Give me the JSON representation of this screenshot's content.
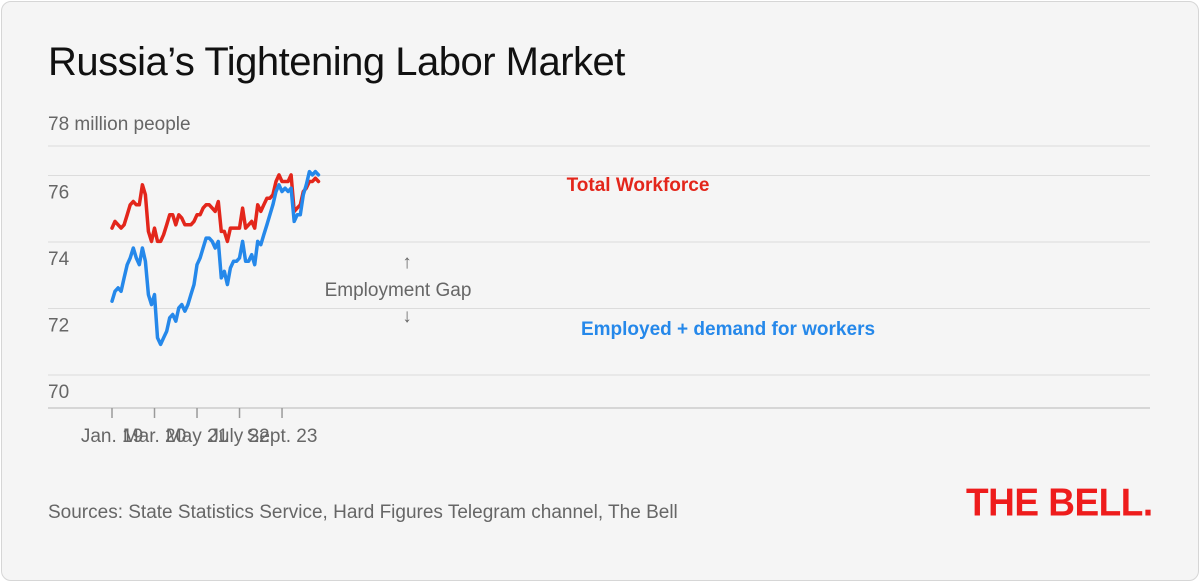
{
  "chart_data": {
    "type": "line",
    "title": "Russia’s Tightening Labor Market",
    "ylabel": "78 million people",
    "ylim": [
      69.5,
      78
    ],
    "yticks": [
      70,
      72,
      74,
      76
    ],
    "x_start": "2019-01",
    "x_step": "month",
    "xticks": [
      {
        "label": "Jan. 19",
        "index": 0
      },
      {
        "label": "Mar. 20",
        "index": 14
      },
      {
        "label": "May 21",
        "index": 28
      },
      {
        "label": "July 22",
        "index": 42
      },
      {
        "label": "Sept. 23",
        "index": 56
      }
    ],
    "grid": true,
    "series": [
      {
        "name": "Total Workforce",
        "color": "#e3261b",
        "values": [
          74.9,
          75.1,
          75.0,
          74.9,
          75.0,
          75.3,
          75.6,
          75.7,
          75.6,
          75.6,
          76.2,
          75.9,
          74.8,
          74.5,
          74.9,
          74.5,
          74.5,
          74.7,
          75.0,
          75.3,
          75.3,
          75.0,
          75.3,
          75.2,
          75.0,
          75.0,
          75.0,
          75.1,
          75.3,
          75.3,
          75.5,
          75.6,
          75.6,
          75.5,
          75.4,
          75.7,
          74.8,
          74.8,
          74.5,
          74.9,
          74.9,
          74.9,
          74.9,
          75.5,
          74.9,
          75.0,
          75.1,
          74.9,
          75.6,
          75.4,
          75.6,
          75.8,
          75.8,
          75.9,
          76.3,
          76.5,
          76.3,
          76.3,
          76.3,
          76.5,
          75.4,
          75.5,
          75.6,
          76.0,
          76.1,
          76.3,
          76.3,
          76.4,
          76.3
        ]
      },
      {
        "name": "Employed + demand for workers",
        "color": "#2588ea",
        "values": [
          72.7,
          73.0,
          73.1,
          73.0,
          73.4,
          73.8,
          74.0,
          74.3,
          74.0,
          73.8,
          74.3,
          73.9,
          72.9,
          72.6,
          72.9,
          71.6,
          71.4,
          71.6,
          71.8,
          72.2,
          72.3,
          72.1,
          72.5,
          72.6,
          72.4,
          72.6,
          72.9,
          73.2,
          73.8,
          74.0,
          74.3,
          74.6,
          74.6,
          74.5,
          74.3,
          74.5,
          73.4,
          73.6,
          73.2,
          73.7,
          73.9,
          73.9,
          74.0,
          74.5,
          73.9,
          73.9,
          74.1,
          73.8,
          74.5,
          74.4,
          74.7,
          75.0,
          75.3,
          75.6,
          76.0,
          76.2,
          76.0,
          76.1,
          76.0,
          76.1,
          75.1,
          75.3,
          75.3,
          75.9,
          76.2,
          76.6,
          76.5,
          76.6,
          76.5
        ]
      }
    ],
    "annotation": "Employment Gap",
    "annotation_up_arrow": "↑",
    "annotation_down_arrow": "↓"
  },
  "footer": {
    "source": "Sources: State Statistics Service, Hard Figures Telegram channel, The Bell",
    "logo": "THE BELL."
  }
}
